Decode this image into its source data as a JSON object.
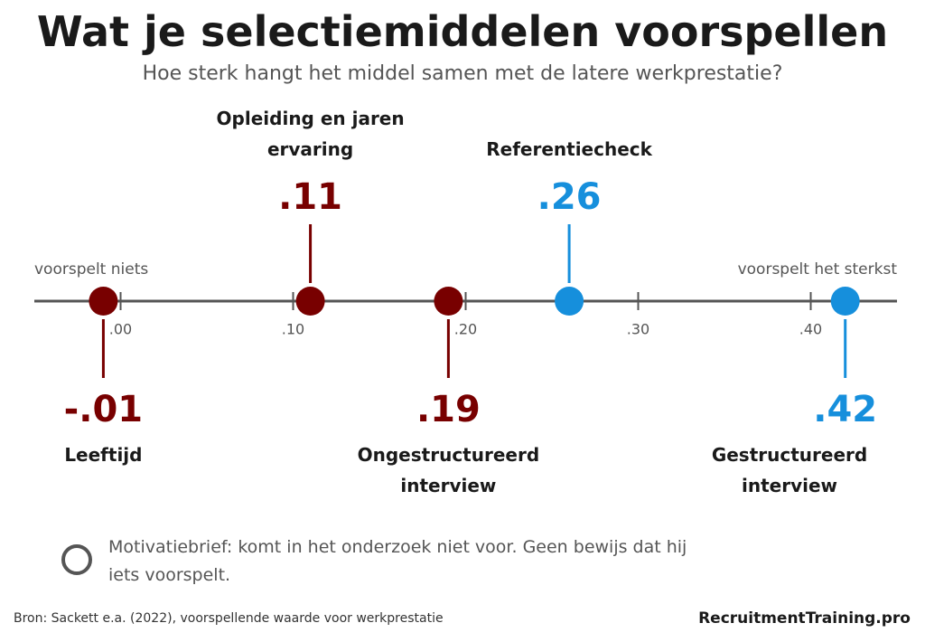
{
  "chart_data": {
    "type": "dotplot",
    "title": "Wat je selectiemiddelen voorspellen",
    "subtitle": "Hoe sterk hangt het middel samen met de latere werkprestatie?",
    "left_label": "voorspelt niets",
    "right_label": "voorspelt het sterkst",
    "categories": [
      "Leeftijd",
      "Opleiding en jaren ervaring",
      "Ongestructureerd interview",
      "Referentiecheck",
      "Gestructureerd interview"
    ],
    "values": [
      -0.01,
      0.11,
      0.19,
      0.26,
      0.42
    ],
    "value_labels": [
      "-.01",
      ".11",
      ".19",
      ".26",
      ".42"
    ],
    "colors": [
      "#780000",
      "#780000",
      "#780000",
      "#168fdc",
      "#168fdc"
    ],
    "xlim": [
      -0.05,
      0.45
    ],
    "xticks": [
      {
        "value": 0,
        "label": ".00"
      },
      {
        "value": 0.1,
        "label": ".10"
      },
      {
        "value": 0.2,
        "label": ".20"
      },
      {
        "value": 0.3,
        "label": ".30"
      },
      {
        "value": 0.4,
        "label": ".40"
      }
    ],
    "note": "Motivatiebrief: komt in het onderzoek niet voor. Geen bewijs dat hij iets voorspelt.",
    "source": "Bron: Sackett e.a. (2022), voorspellende waarde voor werkprestatie",
    "brand": "RecruitmentTraining.pro"
  }
}
